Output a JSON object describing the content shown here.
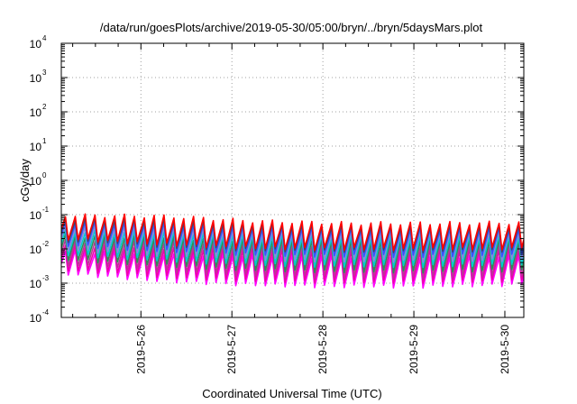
{
  "chart_data": {
    "type": "line",
    "title": "/data/run/goesPlots/archive/2019-05-30/05:00/bryn/../bryn/5daysMars.plot",
    "xlabel": "Coordinated Universal Time (UTC)",
    "ylabel": "cGy/day",
    "y_scale": "log",
    "ylim": [
      0.0001,
      10000
    ],
    "y_ticks": [
      {
        "base": "10",
        "exp": "-4"
      },
      {
        "base": "10",
        "exp": "-3"
      },
      {
        "base": "10",
        "exp": "-2"
      },
      {
        "base": "10",
        "exp": "-1"
      },
      {
        "base": "10",
        "exp": "0"
      },
      {
        "base": "10",
        "exp": "1"
      },
      {
        "base": "10",
        "exp": "2"
      },
      {
        "base": "10",
        "exp": "3"
      },
      {
        "base": "10",
        "exp": "4"
      }
    ],
    "x_range": [
      "2019-05-25 03:00",
      "2019-05-30 05:00"
    ],
    "x_ticks": [
      "2019-5-26",
      "2019-5-27",
      "2019-5-28",
      "2019-5-29",
      "2019-5-30"
    ],
    "grid": true,
    "sawtooth_period_hours": 2.6,
    "series": [
      {
        "color": "#ff00ff",
        "lows": [
          0.0019,
          0.0012,
          0.0009,
          0.0008,
          0.0008,
          0.0009
        ],
        "highs": [
          0.0085,
          0.0075,
          0.0065,
          0.006,
          0.006,
          0.0062
        ]
      },
      {
        "color": "#ee00aa",
        "lows": [
          0.0025,
          0.0016,
          0.0012,
          0.0011,
          0.0011,
          0.0012
        ],
        "highs": [
          0.012,
          0.011,
          0.0095,
          0.009,
          0.009,
          0.0095
        ]
      },
      {
        "color": "#bb3399",
        "lows": [
          0.0035,
          0.0023,
          0.0017,
          0.0015,
          0.0015,
          0.0016
        ],
        "highs": [
          0.017,
          0.016,
          0.013,
          0.012,
          0.012,
          0.013
        ]
      },
      {
        "color": "#2e8b57",
        "lows": [
          0.005,
          0.0034,
          0.0025,
          0.0022,
          0.0022,
          0.0024
        ],
        "highs": [
          0.024,
          0.022,
          0.018,
          0.017,
          0.017,
          0.018
        ]
      },
      {
        "color": "#00cccc",
        "lows": [
          0.007,
          0.0048,
          0.0035,
          0.0032,
          0.0032,
          0.0034
        ],
        "highs": [
          0.033,
          0.031,
          0.025,
          0.023,
          0.023,
          0.024
        ]
      },
      {
        "color": "#8888dd",
        "lows": [
          0.0095,
          0.0065,
          0.005,
          0.0045,
          0.0045,
          0.0048
        ],
        "highs": [
          0.045,
          0.042,
          0.033,
          0.03,
          0.03,
          0.032
        ]
      },
      {
        "color": "#3355ff",
        "lows": [
          0.013,
          0.009,
          0.007,
          0.0063,
          0.0063,
          0.0066
        ],
        "highs": [
          0.06,
          0.055,
          0.042,
          0.038,
          0.038,
          0.04
        ]
      },
      {
        "color": "#444466",
        "lows": [
          0.017,
          0.012,
          0.0095,
          0.0086,
          0.0086,
          0.009
        ],
        "highs": [
          0.075,
          0.07,
          0.052,
          0.046,
          0.046,
          0.048
        ]
      },
      {
        "color": "#ff0000",
        "lows": [
          0.02,
          0.014,
          0.011,
          0.01,
          0.01,
          0.0105
        ],
        "highs": [
          0.095,
          0.09,
          0.065,
          0.056,
          0.056,
          0.058
        ]
      }
    ]
  }
}
